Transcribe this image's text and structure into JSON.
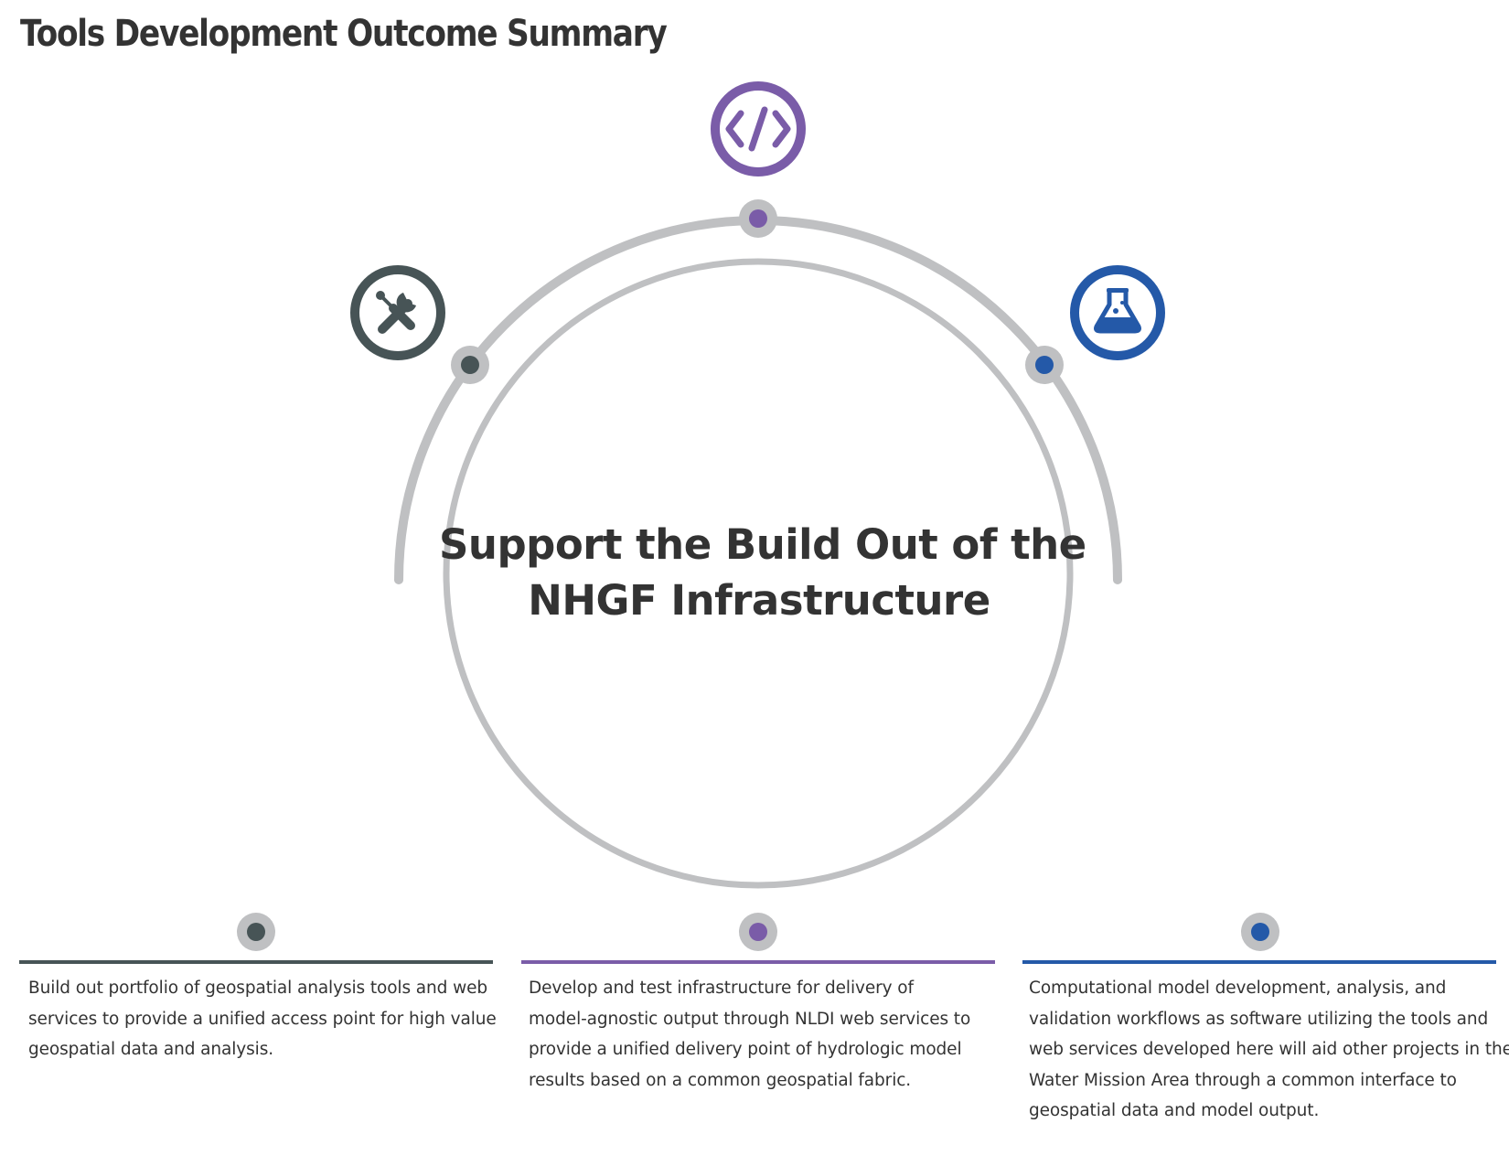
{
  "page": {
    "title": "Tools Development Outcome Summary"
  },
  "center": {
    "line1": "Support the Build Out of the",
    "line2": "NHGF Infrastructure"
  },
  "colors": {
    "dark": "#475456",
    "purple": "#7a5ca8",
    "blue": "#2459a8",
    "ring": "#bfc0c2",
    "text": "#333333"
  },
  "items": [
    {
      "icon": "tools-icon",
      "color": "#475456",
      "lines": [
        "Build out portfolio of geospatial analysis tools and web",
        "services to provide a unified access point for high value",
        "geospatial data and analysis."
      ]
    },
    {
      "icon": "code-icon",
      "color": "#7a5ca8",
      "lines": [
        "Develop and test infrastructure for delivery of",
        "model-agnostic output through NLDI web services to",
        "provide a unified delivery point of hydrologic model",
        "results based on a common geospatial fabric."
      ]
    },
    {
      "icon": "flask-icon",
      "color": "#2459a8",
      "lines": [
        "Computational model development, analysis, and",
        "validation workflows as software utilizing the tools and",
        "web services developed here will aid other projects in the",
        "Water Mission Area through a common interface to",
        "geospatial data and model output."
      ]
    }
  ]
}
